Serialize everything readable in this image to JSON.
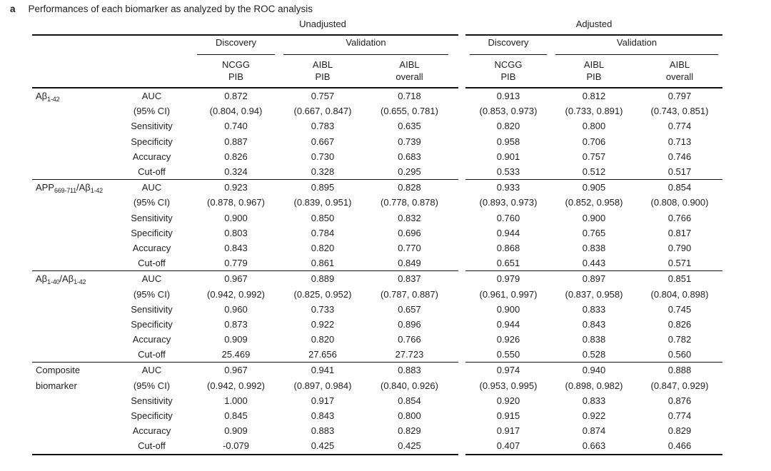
{
  "panel": {
    "label": "a",
    "title": "Performances of each biomarker as analyzed by the ROC analysis"
  },
  "colors": {
    "text": "#1f1f1f",
    "rule": "#111111",
    "background": "#ffffff"
  },
  "header": {
    "unadjusted": "Unadjusted",
    "adjusted": "Adjusted",
    "discovery": "Discovery",
    "validation": "Validation",
    "cohorts": [
      {
        "line1": "NCGG",
        "line2": "PIB"
      },
      {
        "line1": "AIBL",
        "line2": "PIB"
      },
      {
        "line1": "AIBL",
        "line2": "overall"
      }
    ]
  },
  "metrics": [
    "AUC",
    "(95% CI)",
    "Sensitivity",
    "Specificity",
    "Accuracy",
    "Cut-off"
  ],
  "groups": [
    {
      "name": {
        "base": "Aβ",
        "sub": "1-42"
      },
      "rows": [
        {
          "u": [
            "0.872",
            "0.757",
            "0.718"
          ],
          "a": [
            "0.913",
            "0.812",
            "0.797"
          ]
        },
        {
          "u": [
            "(0.804, 0.94)",
            "(0.667, 0.847)",
            "(0.655, 0.781)"
          ],
          "a": [
            "(0.853, 0.973)",
            "(0.733, 0.891)",
            "(0.743, 0.851)"
          ]
        },
        {
          "u": [
            "0.740",
            "0.783",
            "0.635"
          ],
          "a": [
            "0.820",
            "0.800",
            "0.774"
          ]
        },
        {
          "u": [
            "0.887",
            "0.667",
            "0.739"
          ],
          "a": [
            "0.958",
            "0.706",
            "0.713"
          ]
        },
        {
          "u": [
            "0.826",
            "0.730",
            "0.683"
          ],
          "a": [
            "0.901",
            "0.757",
            "0.746"
          ]
        },
        {
          "u": [
            "0.324",
            "0.328",
            "0.295"
          ],
          "a": [
            "0.533",
            "0.512",
            "0.517"
          ]
        }
      ]
    },
    {
      "name": {
        "base1": "APP",
        "sub1": "669-711",
        "base2": "/Aβ",
        "sub2": "1-42"
      },
      "rows": [
        {
          "u": [
            "0.923",
            "0.895",
            "0.828"
          ],
          "a": [
            "0.933",
            "0.905",
            "0.854"
          ]
        },
        {
          "u": [
            "(0.878, 0.967)",
            "(0.839, 0.951)",
            "(0.778, 0.878)"
          ],
          "a": [
            "(0.893, 0.973)",
            "(0.852, 0.958)",
            "(0.808, 0.900)"
          ]
        },
        {
          "u": [
            "0.900",
            "0.850",
            "0.832"
          ],
          "a": [
            "0.760",
            "0.900",
            "0.766"
          ]
        },
        {
          "u": [
            "0.803",
            "0.784",
            "0.696"
          ],
          "a": [
            "0.944",
            "0.765",
            "0.817"
          ]
        },
        {
          "u": [
            "0.843",
            "0.820",
            "0.770"
          ],
          "a": [
            "0.868",
            "0.838",
            "0.790"
          ]
        },
        {
          "u": [
            "0.779",
            "0.861",
            "0.849"
          ],
          "a": [
            "0.651",
            "0.443",
            "0.571"
          ]
        }
      ]
    },
    {
      "name": {
        "base1": "Aβ",
        "sub1": "1-40",
        "base2": "/Aβ",
        "sub2": "1-42"
      },
      "rows": [
        {
          "u": [
            "0.967",
            "0.889",
            "0.837"
          ],
          "a": [
            "0.979",
            "0.897",
            "0.851"
          ]
        },
        {
          "u": [
            "(0.942, 0.992)",
            "(0.825, 0.952)",
            "(0.787, 0.887)"
          ],
          "a": [
            "(0.961, 0.997)",
            "(0.837, 0.958)",
            "(0.804, 0.898)"
          ]
        },
        {
          "u": [
            "0.960",
            "0.733",
            "0.657"
          ],
          "a": [
            "0.900",
            "0.833",
            "0.745"
          ]
        },
        {
          "u": [
            "0.873",
            "0.922",
            "0.896"
          ],
          "a": [
            "0.944",
            "0.843",
            "0.826"
          ]
        },
        {
          "u": [
            "0.909",
            "0.820",
            "0.766"
          ],
          "a": [
            "0.926",
            "0.838",
            "0.782"
          ]
        },
        {
          "u": [
            "25.469",
            "27.656",
            "27.723"
          ],
          "a": [
            "0.550",
            "0.528",
            "0.560"
          ]
        }
      ]
    },
    {
      "name": {
        "line1": "Composite",
        "line2": "biomarker"
      },
      "rows": [
        {
          "u": [
            "0.967",
            "0.941",
            "0.883"
          ],
          "a": [
            "0.974",
            "0.940",
            "0.888"
          ]
        },
        {
          "u": [
            "(0.942, 0.992)",
            "(0.897, 0.984)",
            "(0.840, 0.926)"
          ],
          "a": [
            "(0.953, 0.995)",
            "(0.898, 0.982)",
            "(0.847, 0.929)"
          ]
        },
        {
          "u": [
            "1.000",
            "0.917",
            "0.854"
          ],
          "a": [
            "0.920",
            "0.833",
            "0.876"
          ]
        },
        {
          "u": [
            "0.845",
            "0.843",
            "0.800"
          ],
          "a": [
            "0.915",
            "0.922",
            "0.774"
          ]
        },
        {
          "u": [
            "0.909",
            "0.883",
            "0.829"
          ],
          "a": [
            "0.917",
            "0.874",
            "0.829"
          ]
        },
        {
          "u": [
            "-0.079",
            "0.425",
            "0.425"
          ],
          "a": [
            "0.407",
            "0.663",
            "0.466"
          ]
        }
      ]
    }
  ]
}
